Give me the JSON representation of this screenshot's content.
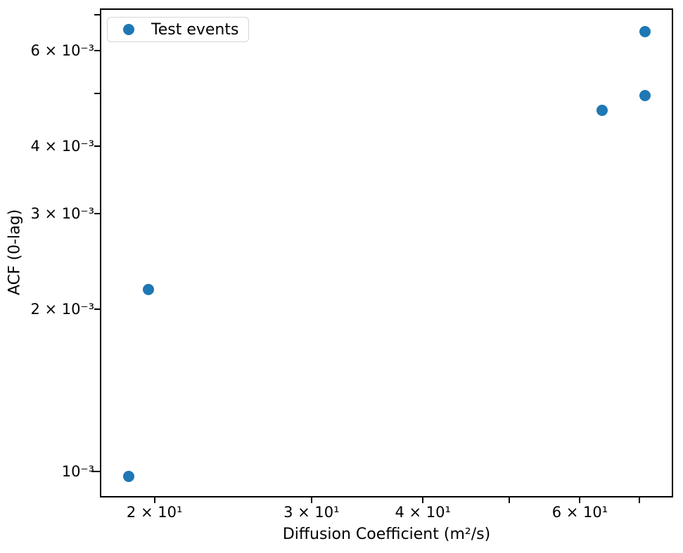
{
  "figure": {
    "background": "#ffffff",
    "text_color": "#000000",
    "spine_color": "#000000",
    "legend_border_color": "#d6d6d6"
  },
  "chart_data": {
    "type": "scatter",
    "title": "",
    "xlabel": "Diffusion Coefficient (m²/s)",
    "ylabel": "ACF (0-lag)",
    "xscale": "log",
    "yscale": "log",
    "xlim": [
      17.4,
      76.2
    ],
    "ylim": [
      0.000902,
      0.00716
    ],
    "grid": false,
    "legend": {
      "position": "upper-left",
      "entries": [
        {
          "label": "Test events",
          "marker": "circle",
          "color": "#1f77b4"
        }
      ]
    },
    "series": [
      {
        "name": "Test events",
        "color": "#1f77b4",
        "marker": "circle",
        "marker_diameter_px": 16,
        "points": [
          {
            "x": 18.7,
            "y": 0.00098
          },
          {
            "x": 19.7,
            "y": 0.00217
          },
          {
            "x": 63.5,
            "y": 0.00466
          },
          {
            "x": 71.0,
            "y": 0.00495
          },
          {
            "x": 71.0,
            "y": 0.0065
          }
        ]
      }
    ],
    "x_ticks": [
      {
        "value": 20,
        "label": "2 × 10¹",
        "major": false
      },
      {
        "value": 30,
        "label": "3 × 10¹",
        "major": false
      },
      {
        "value": 40,
        "label": "4 × 10¹",
        "major": false
      },
      {
        "value": 50,
        "label": "",
        "major": false
      },
      {
        "value": 60,
        "label": "6 × 10¹",
        "major": false
      },
      {
        "value": 70,
        "label": "",
        "major": false
      }
    ],
    "y_ticks": [
      {
        "value": 0.001,
        "label": "10⁻³",
        "major": true
      },
      {
        "value": 0.002,
        "label": "2 × 10⁻³",
        "major": false
      },
      {
        "value": 0.003,
        "label": "3 × 10⁻³",
        "major": false
      },
      {
        "value": 0.004,
        "label": "4 × 10⁻³",
        "major": false
      },
      {
        "value": 0.005,
        "label": "",
        "major": false
      },
      {
        "value": 0.006,
        "label": "6 × 10⁻³",
        "major": false
      },
      {
        "value": 0.007,
        "label": "",
        "major": false
      }
    ]
  }
}
